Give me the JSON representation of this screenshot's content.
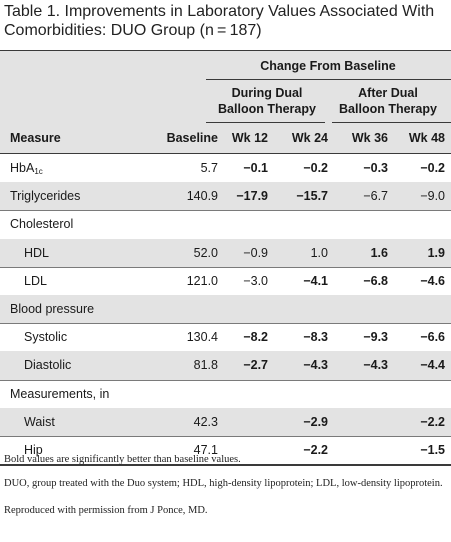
{
  "title": {
    "label": "Table 1.",
    "text": "Improvements in Laboratory Values Associated With Comorbidities: DUO Group (n = 187)"
  },
  "header": {
    "change_from_baseline": "Change From Baseline",
    "during_dual": "During Dual",
    "during_dual_2": "Balloon Therapy",
    "after_dual": "After Dual",
    "after_dual_2": "Balloon Therapy",
    "measure": "Measure",
    "baseline": "Baseline",
    "wk12": "Wk 12",
    "wk24": "Wk 24",
    "wk36": "Wk 36",
    "wk48": "Wk 48"
  },
  "rows": [
    {
      "measure": "HbA",
      "sub": "1c",
      "indent": false,
      "baseline": "5.7",
      "wk12": "−0.1",
      "wk24": "−0.2",
      "wk36": "−0.3",
      "wk48": "−0.2",
      "bold": [
        true,
        true,
        true,
        true
      ]
    },
    {
      "measure": "Triglycerides",
      "indent": false,
      "baseline": "140.9",
      "wk12": "−17.9",
      "wk24": "−15.7",
      "wk36": "−6.7",
      "wk48": "−9.0",
      "bold": [
        true,
        true,
        false,
        false
      ]
    },
    {
      "measure": "Cholesterol",
      "indent": false,
      "group": true
    },
    {
      "measure": "HDL",
      "indent": true,
      "baseline": "52.0",
      "wk12": "−0.9",
      "wk24": "1.0",
      "wk36": "1.6",
      "wk48": "1.9",
      "bold": [
        false,
        false,
        true,
        true
      ]
    },
    {
      "measure": "LDL",
      "indent": true,
      "baseline": "121.0",
      "wk12": "−3.0",
      "wk24": "−4.1",
      "wk36": "−6.8",
      "wk48": "−4.6",
      "bold": [
        false,
        true,
        true,
        true
      ]
    },
    {
      "measure": "Blood pressure",
      "indent": false,
      "group": true
    },
    {
      "measure": "Systolic",
      "indent": true,
      "baseline": "130.4",
      "wk12": "−8.2",
      "wk24": "−8.3",
      "wk36": "−9.3",
      "wk48": "−6.6",
      "bold": [
        true,
        true,
        true,
        true
      ]
    },
    {
      "measure": "Diastolic",
      "indent": true,
      "baseline": "81.8",
      "wk12": "−2.7",
      "wk24": "−4.3",
      "wk36": "−4.3",
      "wk48": "−4.4",
      "bold": [
        true,
        true,
        true,
        true
      ]
    },
    {
      "measure": "Measurements, in",
      "indent": false,
      "group": true
    },
    {
      "measure": "Waist",
      "indent": true,
      "baseline": "42.3",
      "wk12": "",
      "wk24": "−2.9",
      "wk36": "",
      "wk48": "−2.2",
      "bold": [
        false,
        true,
        false,
        true
      ]
    },
    {
      "measure": "Hip",
      "indent": true,
      "baseline": "47.1",
      "wk12": "",
      "wk24": "−2.2",
      "wk36": "",
      "wk48": "−1.5",
      "bold": [
        false,
        true,
        false,
        true
      ]
    }
  ],
  "footnotes": [
    "Bold values are significantly better than baseline values.",
    "DUO, group treated with the Duo system; HDL, high-density lipoprotein; LDL, low-density lipoprotein.",
    "Reproduced with permission from J Ponce, MD."
  ],
  "colors": {
    "band": "#e3e3e3",
    "rule": "#3a3a3a"
  }
}
